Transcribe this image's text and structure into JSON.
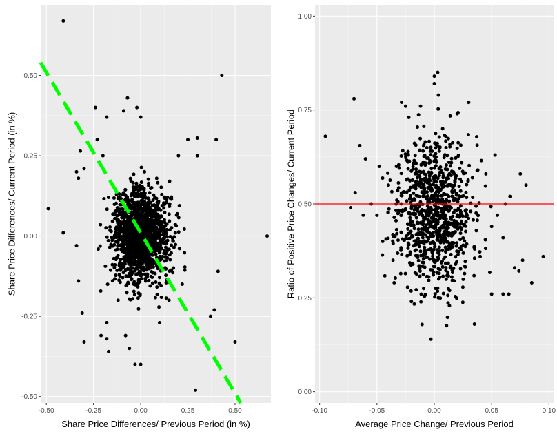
{
  "colors": {
    "panel_bg": "#ebebeb",
    "grid_major": "#ffffff",
    "grid_minor": "#f5f5f5",
    "point": "#000000",
    "regression_line": "#00ff00",
    "reference_line": "#ff0000",
    "tick_text": "#4d4d4d"
  },
  "chart_data": [
    {
      "type": "scatter",
      "title": "",
      "xlabel": "Share Price Differences/ Previous Period (in %)",
      "ylabel": "Share Price Differences/ Current Period (in %)",
      "xlim": [
        -0.53,
        0.69
      ],
      "ylim": [
        -0.52,
        0.72
      ],
      "x_ticks": [
        -0.5,
        -0.25,
        0,
        0.25,
        0.5
      ],
      "x_tick_labels": [
        "-0.50",
        "-0.25",
        "0.00",
        "0.25",
        "0.50"
      ],
      "y_ticks": [
        -0.5,
        -0.25,
        0,
        0.25,
        0.5
      ],
      "y_tick_labels": [
        "-0.50",
        "-0.25",
        "0.00",
        "0.25",
        "0.50"
      ],
      "grid": true,
      "cluster": {
        "description": "dense point cloud",
        "center": [
          0.0,
          0.0
        ],
        "sd": [
          0.075,
          0.07
        ],
        "count": 1500,
        "seed": 7
      },
      "points": [
        [
          -0.41,
          0.67
        ],
        [
          0.43,
          0.5
        ],
        [
          -0.49,
          0.085
        ],
        [
          -0.34,
          0.2
        ],
        [
          -0.32,
          0.265
        ],
        [
          -0.33,
          0.18
        ],
        [
          -0.3,
          0.21
        ],
        [
          -0.24,
          0.4
        ],
        [
          -0.23,
          0.3
        ],
        [
          -0.18,
          0.37
        ],
        [
          -0.09,
          0.39
        ],
        [
          -0.07,
          0.43
        ],
        [
          -0.02,
          0.4
        ],
        [
          0.0,
          0.37
        ],
        [
          0.02,
          0.2
        ],
        [
          0.3,
          0.305
        ],
        [
          0.4,
          0.3
        ],
        [
          0.25,
          0.3
        ],
        [
          -0.41,
          0.01
        ],
        [
          -0.34,
          -0.03
        ],
        [
          -0.33,
          -0.14
        ],
        [
          -0.31,
          -0.24
        ],
        [
          -0.3,
          -0.33
        ],
        [
          -0.21,
          -0.31
        ],
        [
          -0.18,
          -0.32
        ],
        [
          -0.17,
          -0.36
        ],
        [
          -0.18,
          -0.27
        ],
        [
          -0.08,
          -0.31
        ],
        [
          -0.06,
          -0.35
        ],
        [
          -0.03,
          -0.4
        ],
        [
          0.0,
          -0.4
        ],
        [
          0.1,
          -0.27
        ],
        [
          0.29,
          -0.48
        ],
        [
          0.37,
          -0.25
        ],
        [
          0.39,
          -0.23
        ],
        [
          0.41,
          -0.11
        ],
        [
          0.5,
          -0.33
        ],
        [
          0.67,
          0.0
        ],
        [
          0.3,
          0.25
        ],
        [
          0.2,
          0.25
        ],
        [
          -0.12,
          -0.2
        ],
        [
          0.15,
          -0.2
        ],
        [
          -0.2,
          0.25
        ],
        [
          0.22,
          -0.15
        ]
      ],
      "reference_line": {
        "type": "linear-fit",
        "style": "dashed",
        "slope": -1.0,
        "intercept": 0.01
      }
    },
    {
      "type": "scatter",
      "title": "",
      "xlabel": "Average Price Change/ Previous Period",
      "ylabel": "Ratio of Positive Price Changes/ Current Period",
      "xlim": [
        -0.104,
        0.104
      ],
      "ylim": [
        -0.03,
        1.03
      ],
      "x_ticks": [
        -0.1,
        -0.05,
        0,
        0.05,
        0.1
      ],
      "x_tick_labels": [
        "-0.10",
        "-0.05",
        "0.00",
        "0.05",
        "0.10"
      ],
      "y_ticks": [
        0,
        0.25,
        0.5,
        0.75,
        1.0
      ],
      "y_tick_labels": [
        "0.00",
        "0.25",
        "0.50",
        "0.75",
        "1.00"
      ],
      "grid": true,
      "cluster": {
        "description": "dense point cloud",
        "center": [
          0.0,
          0.48
        ],
        "sd": [
          0.016,
          0.1
        ],
        "count": 950,
        "seed": 11
      },
      "points": [
        [
          -0.095,
          0.68
        ],
        [
          -0.07,
          0.78
        ],
        [
          -0.065,
          0.655
        ],
        [
          -0.06,
          0.62
        ],
        [
          -0.073,
          0.49
        ],
        [
          -0.069,
          0.53
        ],
        [
          -0.062,
          0.47
        ],
        [
          -0.05,
          0.47
        ],
        [
          -0.045,
          0.4
        ],
        [
          -0.036,
          0.35
        ],
        [
          -0.035,
          0.29
        ],
        [
          -0.033,
          0.6
        ],
        [
          -0.04,
          0.55
        ],
        [
          -0.055,
          0.5
        ],
        [
          -0.02,
          0.24
        ],
        [
          -0.003,
          0.14
        ],
        [
          0.0,
          0.84
        ],
        [
          0.003,
          0.85
        ],
        [
          0.0,
          0.82
        ],
        [
          0.035,
          0.18
        ],
        [
          0.05,
          0.26
        ],
        [
          0.06,
          0.26
        ],
        [
          0.065,
          0.26
        ],
        [
          0.07,
          0.33
        ],
        [
          0.08,
          0.55
        ],
        [
          0.075,
          0.58
        ],
        [
          0.095,
          0.36
        ],
        [
          0.085,
          0.29
        ],
        [
          0.077,
          0.35
        ],
        [
          0.053,
          0.63
        ],
        [
          0.055,
          0.47
        ],
        [
          0.062,
          0.5
        ],
        [
          0.066,
          0.52
        ],
        [
          0.06,
          0.41
        ],
        [
          0.05,
          0.44
        ],
        [
          0.03,
          0.77
        ],
        [
          0.02,
          0.74
        ],
        [
          -0.012,
          0.76
        ],
        [
          -0.025,
          0.76
        ],
        [
          0.045,
          0.58
        ],
        [
          -0.048,
          0.6
        ],
        [
          0.04,
          0.36
        ]
      ],
      "reference_line": {
        "type": "horizontal",
        "y": 0.5
      }
    }
  ]
}
